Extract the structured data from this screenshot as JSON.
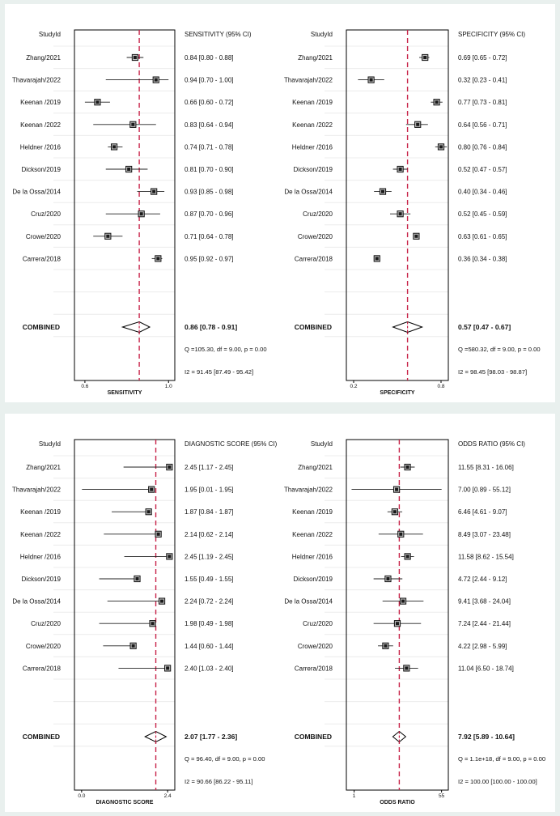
{
  "chart_data": [
    {
      "type": "forest",
      "id": "sensitivity",
      "xlabel": "SENSITIVITY",
      "header_left": "StudyId",
      "header_right": "SENSITIVITY (95% CI)",
      "xlim": [
        0.55,
        1.03
      ],
      "ticks": [
        {
          "v": 0.6,
          "label": "0.6"
        },
        {
          "v": 1.0,
          "label": "1.0"
        }
      ],
      "ref": 0.86,
      "studies": [
        {
          "name": "Zhang/2021",
          "est": 0.84,
          "lo": 0.8,
          "hi": 0.88,
          "label": "0.84 [0.80 - 0.88]"
        },
        {
          "name": "Thavarajah/2022",
          "est": 0.94,
          "lo": 0.7,
          "hi": 1.0,
          "label": "0.94 [0.70 - 1.00]"
        },
        {
          "name": "Keenan /2019",
          "est": 0.66,
          "lo": 0.6,
          "hi": 0.72,
          "label": "0.66 [0.60 - 0.72]"
        },
        {
          "name": "Keenan /2022",
          "est": 0.83,
          "lo": 0.64,
          "hi": 0.94,
          "label": "0.83 [0.64 - 0.94]"
        },
        {
          "name": "Heldner /2016",
          "est": 0.74,
          "lo": 0.71,
          "hi": 0.78,
          "label": "0.74 [0.71 - 0.78]"
        },
        {
          "name": "Dickson/2019",
          "est": 0.81,
          "lo": 0.7,
          "hi": 0.9,
          "label": "0.81 [0.70 - 0.90]"
        },
        {
          "name": "De la Ossa/2014",
          "est": 0.93,
          "lo": 0.85,
          "hi": 0.98,
          "label": "0.93 [0.85 - 0.98]"
        },
        {
          "name": "Cruz/2020",
          "est": 0.87,
          "lo": 0.7,
          "hi": 0.96,
          "label": "0.87 [0.70 - 0.96]"
        },
        {
          "name": "Crowe/2020",
          "est": 0.71,
          "lo": 0.64,
          "hi": 0.78,
          "label": "0.71 [0.64 - 0.78]"
        },
        {
          "name": "Carrera/2018",
          "est": 0.95,
          "lo": 0.92,
          "hi": 0.97,
          "label": "0.95 [0.92 - 0.97]"
        }
      ],
      "combined": {
        "name": "COMBINED",
        "est": 0.86,
        "lo": 0.78,
        "hi": 0.91,
        "label": "0.86 [0.78 - 0.91]"
      },
      "q_stat": "Q =105.30, df = 9.00, p =  0.00",
      "i2_stat": "I2 = 91.45 [87.49 - 95.42]"
    },
    {
      "type": "forest",
      "id": "specificity",
      "xlabel": "SPECIFICITY",
      "header_left": "StudyId",
      "header_right": "SPECIFICITY (95% CI)",
      "xlim": [
        0.15,
        0.85
      ],
      "ticks": [
        {
          "v": 0.2,
          "label": "0.2"
        },
        {
          "v": 0.8,
          "label": "0.8"
        }
      ],
      "ref": 0.57,
      "studies": [
        {
          "name": "Zhang/2021",
          "est": 0.69,
          "lo": 0.65,
          "hi": 0.72,
          "label": "0.69 [0.65 - 0.72]"
        },
        {
          "name": "Thavarajah/2022",
          "est": 0.32,
          "lo": 0.23,
          "hi": 0.41,
          "label": "0.32 [0.23 - 0.41]"
        },
        {
          "name": "Keenan /2019",
          "est": 0.77,
          "lo": 0.73,
          "hi": 0.81,
          "label": "0.77 [0.73 - 0.81]"
        },
        {
          "name": "Keenan /2022",
          "est": 0.64,
          "lo": 0.56,
          "hi": 0.71,
          "label": "0.64 [0.56 - 0.71]"
        },
        {
          "name": "Heldner /2016",
          "est": 0.8,
          "lo": 0.76,
          "hi": 0.84,
          "label": "0.80 [0.76 - 0.84]"
        },
        {
          "name": "Dickson/2019",
          "est": 0.52,
          "lo": 0.47,
          "hi": 0.57,
          "label": "0.52 [0.47 - 0.57]"
        },
        {
          "name": "De la Ossa/2014",
          "est": 0.4,
          "lo": 0.34,
          "hi": 0.46,
          "label": "0.40 [0.34 - 0.46]"
        },
        {
          "name": "Cruz/2020",
          "est": 0.52,
          "lo": 0.45,
          "hi": 0.59,
          "label": "0.52 [0.45 - 0.59]"
        },
        {
          "name": "Crowe/2020",
          "est": 0.63,
          "lo": 0.61,
          "hi": 0.65,
          "label": "0.63 [0.61 - 0.65]"
        },
        {
          "name": "Carrera/2018",
          "est": 0.36,
          "lo": 0.34,
          "hi": 0.38,
          "label": "0.36 [0.34 - 0.38]"
        }
      ],
      "combined": {
        "name": "COMBINED",
        "est": 0.57,
        "lo": 0.47,
        "hi": 0.67,
        "label": "0.57 [0.47 - 0.67]"
      },
      "q_stat": "Q =580.32, df = 9.00, p =  0.00",
      "i2_stat": "I2 = 98.45 [98.03 - 98.87]"
    },
    {
      "type": "forest",
      "id": "diagnostic-score",
      "xlabel": "DIAGNOSTIC SCORE",
      "header_left": "StudyId",
      "header_right": "DIAGNOSTIC SCORE (95% CI)",
      "xlim": [
        -0.2,
        2.6
      ],
      "ticks": [
        {
          "v": 0.0,
          "label": "0.0"
        },
        {
          "v": 2.4,
          "label": "2.4"
        }
      ],
      "ref": 2.07,
      "studies": [
        {
          "name": "Zhang/2021",
          "est": 2.45,
          "lo": 1.17,
          "hi": 2.45,
          "label": "2.45 [1.17 - 2.45]"
        },
        {
          "name": "Thavarajah/2022",
          "est": 1.95,
          "lo": 0.01,
          "hi": 1.95,
          "label": "1.95 [0.01 - 1.95]"
        },
        {
          "name": "Keenan /2019",
          "est": 1.87,
          "lo": 0.84,
          "hi": 1.87,
          "label": "1.87 [0.84 - 1.87]"
        },
        {
          "name": "Keenan /2022",
          "est": 2.14,
          "lo": 0.62,
          "hi": 2.14,
          "label": "2.14 [0.62 - 2.14]"
        },
        {
          "name": "Heldner /2016",
          "est": 2.45,
          "lo": 1.19,
          "hi": 2.45,
          "label": "2.45 [1.19 - 2.45]"
        },
        {
          "name": "Dickson/2019",
          "est": 1.55,
          "lo": 0.49,
          "hi": 1.55,
          "label": "1.55 [0.49 - 1.55]"
        },
        {
          "name": "De la Ossa/2014",
          "est": 2.24,
          "lo": 0.72,
          "hi": 2.24,
          "label": "2.24 [0.72 - 2.24]"
        },
        {
          "name": "Cruz/2020",
          "est": 1.98,
          "lo": 0.49,
          "hi": 1.98,
          "label": "1.98 [0.49 - 1.98]"
        },
        {
          "name": "Crowe/2020",
          "est": 1.44,
          "lo": 0.6,
          "hi": 1.44,
          "label": "1.44 [0.60 - 1.44]"
        },
        {
          "name": "Carrera/2018",
          "est": 2.4,
          "lo": 1.03,
          "hi": 2.4,
          "label": "2.40 [1.03 - 2.40]"
        }
      ],
      "combined": {
        "name": "COMBINED",
        "est": 2.07,
        "lo": 1.77,
        "hi": 2.36,
        "label": "2.07 [1.77 - 2.36]"
      },
      "q_stat": "Q = 96.40, df = 9.00, p =  0.00",
      "i2_stat": "I2 = 90.66 [86.22 - 95.11]"
    },
    {
      "type": "forest",
      "id": "odds-ratio",
      "xlabel": "ODDS RATIO",
      "header_left": "StudyId",
      "header_right": "ODDS RATIO (95% CI)",
      "xscale": "log",
      "xlim": [
        0.7,
        75
      ],
      "ticks": [
        {
          "v": 1,
          "label": "1"
        },
        {
          "v": 55,
          "label": "55"
        }
      ],
      "ref": 7.92,
      "studies": [
        {
          "name": "Zhang/2021",
          "est": 11.55,
          "lo": 8.31,
          "hi": 16.06,
          "label": "11.55 [8.31 - 16.06]"
        },
        {
          "name": "Thavarajah/2022",
          "est": 7.0,
          "lo": 0.89,
          "hi": 55.12,
          "label": "7.00 [0.89 - 55.12]"
        },
        {
          "name": "Keenan /2019",
          "est": 6.46,
          "lo": 4.61,
          "hi": 9.07,
          "label": "6.46 [4.61 - 9.07]"
        },
        {
          "name": "Keenan /2022",
          "est": 8.49,
          "lo": 3.07,
          "hi": 23.48,
          "label": "8.49 [3.07 - 23.48]"
        },
        {
          "name": "Heldner /2016",
          "est": 11.58,
          "lo": 8.62,
          "hi": 15.54,
          "label": "11.58 [8.62 - 15.54]"
        },
        {
          "name": "Dickson/2019",
          "est": 4.72,
          "lo": 2.44,
          "hi": 9.12,
          "label": "4.72 [2.44 - 9.12]"
        },
        {
          "name": "De la Ossa/2014",
          "est": 9.41,
          "lo": 3.68,
          "hi": 24.04,
          "label": "9.41 [3.68 - 24.04]"
        },
        {
          "name": "Cruz/2020",
          "est": 7.24,
          "lo": 2.44,
          "hi": 21.44,
          "label": "7.24 [2.44 - 21.44]"
        },
        {
          "name": "Crowe/2020",
          "est": 4.22,
          "lo": 2.98,
          "hi": 5.99,
          "label": "4.22 [2.98 - 5.99]"
        },
        {
          "name": "Carrera/2018",
          "est": 11.04,
          "lo": 6.5,
          "hi": 18.74,
          "label": "11.04 [6.50 - 18.74]"
        }
      ],
      "combined": {
        "name": "COMBINED",
        "est": 7.92,
        "lo": 5.89,
        "hi": 10.64,
        "label": "7.92 [5.89 - 10.64]"
      },
      "q_stat": "Q = 1.1e+18, df = 9.00, p =  0.00",
      "i2_stat": "I2 = 100.00 [100.00 - 100.00]"
    }
  ],
  "colors": {
    "page_background": "#e9f0ee",
    "panel_background": "#ffffff",
    "reference_line": "#c8254a",
    "marker": "#1a1a1a",
    "row_line": "#ececec"
  }
}
